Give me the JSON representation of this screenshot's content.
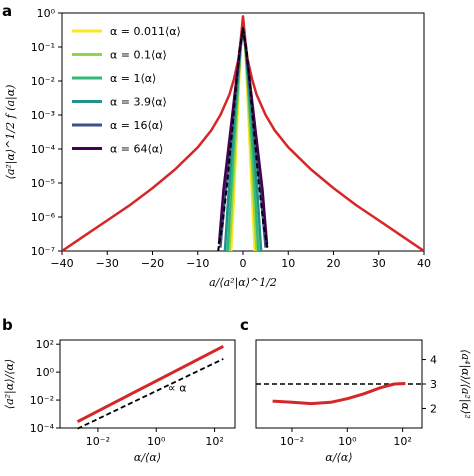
{
  "panels": {
    "a": "a",
    "b": "b",
    "c": "c"
  },
  "chart_data": [
    {
      "panel": "a",
      "type": "line",
      "xlabel": "a/⟨a²|α⟩^1/2",
      "ylabel": "⟨a²|α⟩^1/2 f (a|α)",
      "xlim": [
        -40,
        40
      ],
      "ylim_log10": [
        -7,
        0
      ],
      "yscale": "log",
      "xticks": [
        "−40",
        "−30",
        "−20",
        "−10",
        "0",
        "10",
        "20",
        "30",
        "40"
      ],
      "yticks": [
        "10⁰",
        "10⁻¹",
        "10⁻²",
        "10⁻³",
        "10⁻⁴",
        "10⁻⁵",
        "10⁻⁶",
        "10⁻⁷"
      ],
      "legend_placement": "upper-left",
      "series": [
        {
          "name": "α = 0.011⟨α⟩",
          "color": "#fde725",
          "x": [
            -2.6,
            -2.2,
            -1.6,
            -1.0,
            -0.5,
            0,
            0.5,
            1.0,
            1.6,
            2.2,
            2.6
          ],
          "y_log10": [
            -7,
            -6.0,
            -4.2,
            -2.4,
            -1.0,
            -0.45,
            -1.0,
            -2.4,
            -4.2,
            -6.0,
            -7
          ]
        },
        {
          "name": "α = 0.1⟨α⟩",
          "color": "#8fd744",
          "x": [
            -3.0,
            -2.5,
            -1.8,
            -1.1,
            -0.5,
            0,
            0.5,
            1.1,
            1.8,
            2.5,
            3.0
          ],
          "y_log10": [
            -7,
            -5.8,
            -4.0,
            -2.3,
            -1.0,
            -0.45,
            -1.0,
            -2.3,
            -4.0,
            -5.8,
            -7
          ]
        },
        {
          "name": "α = 1⟨α⟩",
          "color": "#35b779",
          "x": [
            -3.4,
            -2.8,
            -2.0,
            -1.2,
            -0.5,
            0,
            0.5,
            1.2,
            2.0,
            2.8,
            3.4
          ],
          "y_log10": [
            -7,
            -5.6,
            -3.8,
            -2.2,
            -1.0,
            -0.45,
            -1.0,
            -2.2,
            -3.8,
            -5.6,
            -7
          ]
        },
        {
          "name": "α = 3.9⟨α⟩",
          "color": "#21918c",
          "x": [
            -4.0,
            -3.3,
            -2.3,
            -1.3,
            -0.6,
            0,
            0.6,
            1.3,
            2.3,
            3.3,
            4.0
          ],
          "y_log10": [
            -7,
            -5.5,
            -3.7,
            -2.1,
            -1.0,
            -0.45,
            -1.0,
            -2.1,
            -3.7,
            -5.5,
            -7
          ]
        },
        {
          "name": "α = 16⟨α⟩",
          "color": "#3b528b",
          "x": [
            -5.0,
            -4.0,
            -2.6,
            -1.4,
            -0.6,
            0,
            0.6,
            1.4,
            2.6,
            4.0,
            5.0
          ],
          "y_log10": [
            -6.9,
            -5.4,
            -3.6,
            -2.0,
            -1.0,
            -0.45,
            -1.0,
            -2.0,
            -3.6,
            -5.4,
            -6.9
          ]
        },
        {
          "name": "α = 64⟨α⟩",
          "color": "#440154",
          "x": [
            -5.3,
            -4.3,
            -2.8,
            -1.5,
            -0.6,
            0,
            0.6,
            1.5,
            2.8,
            4.3,
            5.3
          ],
          "y_log10": [
            -6.8,
            -5.2,
            -3.5,
            -2.0,
            -1.0,
            -0.45,
            -1.0,
            -2.0,
            -3.5,
            -5.2,
            -6.8
          ]
        },
        {
          "name": "",
          "color": "#d62728",
          "x": [
            -40,
            -35,
            -30,
            -25,
            -20,
            -15,
            -10,
            -7,
            -5,
            -3,
            -2,
            -1,
            -0.5,
            0,
            0.5,
            1,
            2,
            3,
            5,
            7,
            10,
            15,
            20,
            25,
            30,
            35,
            40
          ],
          "y_log10": [
            -7.0,
            -6.55,
            -6.1,
            -5.65,
            -5.15,
            -4.6,
            -3.95,
            -3.45,
            -3.0,
            -2.4,
            -1.95,
            -1.35,
            -0.8,
            -0.1,
            -0.8,
            -1.35,
            -1.95,
            -2.4,
            -3.0,
            -3.45,
            -3.95,
            -4.6,
            -5.15,
            -5.65,
            -6.1,
            -6.55,
            -7.0
          ]
        },
        {
          "name": "",
          "color": "#000000",
          "dashed": true,
          "x": [
            -5.5,
            -4.5,
            -3.5,
            -2.5,
            -1.5,
            -0.8,
            0,
            0.8,
            1.5,
            2.5,
            3.5,
            4.5,
            5.5
          ],
          "y_log10": [
            -7,
            -6.2,
            -5.0,
            -3.6,
            -2.1,
            -1.1,
            -0.45,
            -1.1,
            -2.1,
            -3.6,
            -5.0,
            -6.2,
            -7
          ]
        }
      ]
    },
    {
      "panel": "b",
      "type": "line",
      "xlabel": "α/⟨α⟩",
      "ylabel": "⟨a²|α⟩/⟨α⟩",
      "xscale": "log",
      "yscale": "log",
      "xlim_log10": [
        -3.3,
        2.7
      ],
      "ylim_log10": [
        -4,
        2.3
      ],
      "xticks": [
        "10⁻²",
        "10⁰",
        "10²"
      ],
      "yticks": [
        "10²",
        "10⁰",
        "10⁻²",
        "10⁻⁴"
      ],
      "annotation": "∝ α",
      "series": [
        {
          "name": "",
          "color": "#d62728",
          "x_log10": [
            -2.7,
            2.3
          ],
          "y_log10": [
            -3.55,
            1.85
          ]
        },
        {
          "name": "",
          "color": "#000000",
          "dashed": true,
          "x_log10": [
            -2.7,
            2.3
          ],
          "y_log10": [
            -4.05,
            0.95
          ]
        }
      ]
    },
    {
      "panel": "c",
      "type": "line",
      "xlabel": "α/⟨α⟩",
      "ylabel": "⟨a⁴|α⟩/⟨a²|α⟩²",
      "xscale": "log",
      "xlim_log10": [
        -3.3,
        2.7
      ],
      "ylim": [
        1.2,
        4.8
      ],
      "xticks": [
        "10⁻²",
        "10⁰",
        "10²"
      ],
      "yticks": [
        "2",
        "3",
        "4"
      ],
      "yaxis_side": "right",
      "series": [
        {
          "name": "",
          "color": "#d62728",
          "x_log10": [
            -2.7,
            -2.0,
            -1.3,
            -0.6,
            0.0,
            0.6,
            1.2,
            1.7,
            2.1
          ],
          "y": [
            2.3,
            2.25,
            2.2,
            2.25,
            2.4,
            2.6,
            2.85,
            3.0,
            3.02
          ]
        },
        {
          "name": "",
          "color": "#000000",
          "dashed": true,
          "x_log10": [
            -3.3,
            2.7
          ],
          "y": [
            3,
            3
          ]
        }
      ]
    }
  ]
}
